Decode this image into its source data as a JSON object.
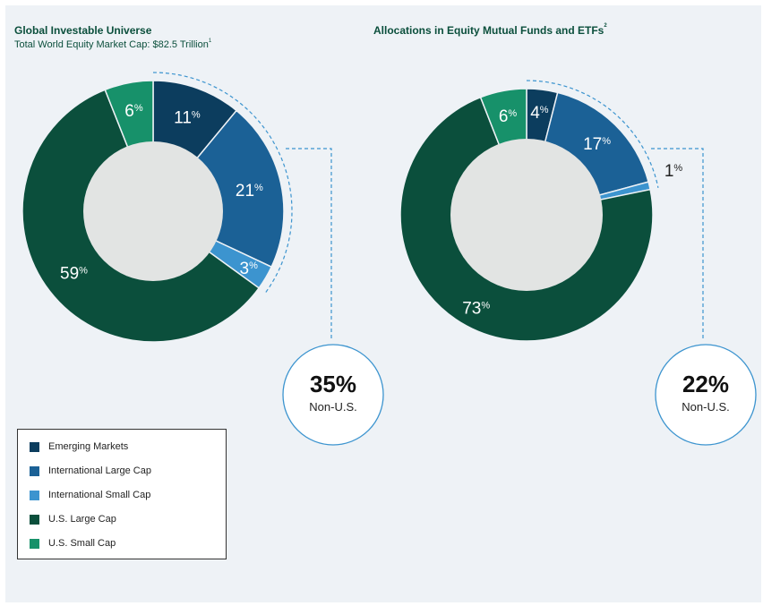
{
  "chart_data": [
    {
      "type": "pie",
      "title": "Global Investable Universe",
      "title_sup": "",
      "subtitle": "Total World Equity Market Cap: $82.5 Trillion",
      "subtitle_sup": "1",
      "slices": [
        {
          "label": "Emerging Markets",
          "value": 11,
          "color": "#0c3d5e"
        },
        {
          "label": "International Large Cap",
          "value": 21,
          "color": "#1b6196"
        },
        {
          "label": "International Small Cap",
          "value": 3,
          "color": "#3c94cf"
        },
        {
          "label": "U.S. Large Cap",
          "value": 59,
          "color": "#0b4f3c"
        },
        {
          "label": "U.S. Small Cap",
          "value": 6,
          "color": "#17916a"
        }
      ],
      "callout": {
        "value": "35%",
        "label": "Non-U.S."
      }
    },
    {
      "type": "pie",
      "title": "Allocations in Equity Mutual Funds and ETFs",
      "title_sup": "2",
      "subtitle": "",
      "subtitle_sup": "",
      "slices": [
        {
          "label": "Emerging Markets",
          "value": 4,
          "color": "#0c3d5e"
        },
        {
          "label": "International Large Cap",
          "value": 17,
          "color": "#1b6196"
        },
        {
          "label": "International Small Cap",
          "value": 1,
          "color": "#3c94cf"
        },
        {
          "label": "U.S. Large Cap",
          "value": 73,
          "color": "#0b4f3c"
        },
        {
          "label": "U.S. Small Cap",
          "value": 6,
          "color": "#17916a"
        }
      ],
      "callout": {
        "value": "22%",
        "label": "Non-U.S."
      }
    }
  ],
  "percent_sign": "%",
  "legend": [
    {
      "label": "Emerging Markets",
      "color": "#0c3d5e"
    },
    {
      "label": "International Large Cap",
      "color": "#1b6196"
    },
    {
      "label": "International Small Cap",
      "color": "#3c94cf"
    },
    {
      "label": "U.S. Large Cap",
      "color": "#0b4f3c"
    },
    {
      "label": "U.S. Small Cap",
      "color": "#17916a"
    }
  ],
  "colors": {
    "inner_circle": "#e2e4e3",
    "dash": "#3c94cf",
    "callout_border": "#3c94cf"
  }
}
